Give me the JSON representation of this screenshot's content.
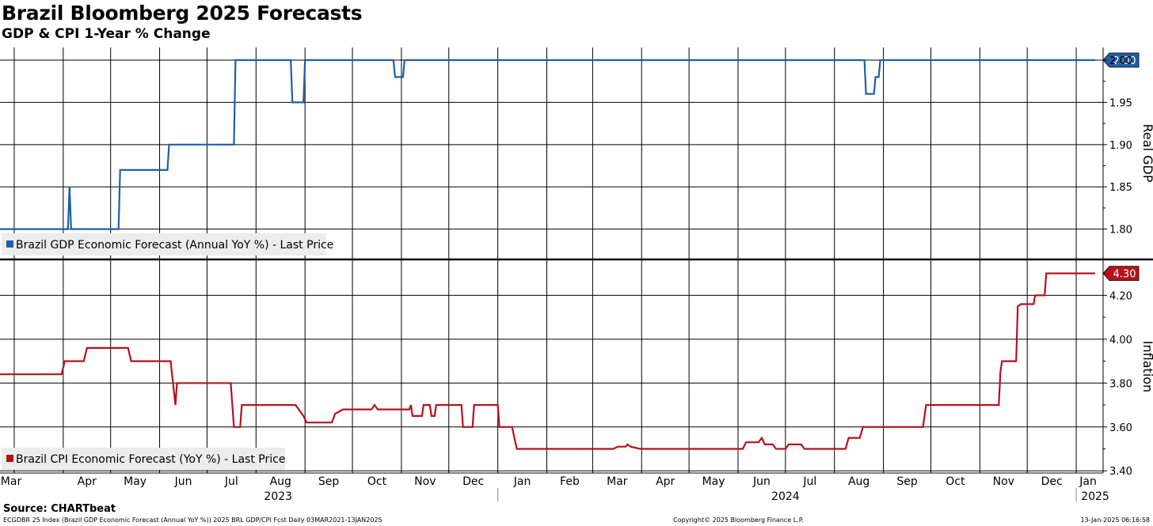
{
  "header": {
    "title": "Brazil Bloomberg 2025 Forecasts",
    "subtitle": "GDP & CPI 1-Year % Change"
  },
  "footer": {
    "source": "Source: CHARTbeat",
    "description": "ECGDBR 25 Index (Brazil GDP Economic Forecast (Annual YoY %)) 2025 BRL GDP/CPI Fcst  Daily 03MAR2021-13JAN2025",
    "copyright": "Copyright© 2025 Bloomberg Finance L.P.",
    "timestamp": "13-Jan-2025 06:16:58"
  },
  "colors": {
    "gdp": "#1f5fa6",
    "cpi": "#b5121b",
    "grid": "#000000"
  },
  "x_axis": {
    "months": [
      {
        "label": "Mar",
        "date": "2023-03-01"
      },
      {
        "label": "Apr",
        "date": "2023-04-01"
      },
      {
        "label": "May",
        "date": "2023-05-01"
      },
      {
        "label": "Jun",
        "date": "2023-06-01"
      },
      {
        "label": "Jul",
        "date": "2023-07-01"
      },
      {
        "label": "Aug",
        "date": "2023-08-01"
      },
      {
        "label": "Sep",
        "date": "2023-09-01"
      },
      {
        "label": "Oct",
        "date": "2023-10-01"
      },
      {
        "label": "Nov",
        "date": "2023-11-01"
      },
      {
        "label": "Dec",
        "date": "2023-12-01"
      },
      {
        "label": "Jan",
        "date": "2024-01-01"
      },
      {
        "label": "Feb",
        "date": "2024-02-01"
      },
      {
        "label": "Mar",
        "date": "2024-03-01"
      },
      {
        "label": "Apr",
        "date": "2024-04-01"
      },
      {
        "label": "May",
        "date": "2024-05-01"
      },
      {
        "label": "Jun",
        "date": "2024-06-01"
      },
      {
        "label": "Jul",
        "date": "2024-07-01"
      },
      {
        "label": "Aug",
        "date": "2024-08-01"
      },
      {
        "label": "Sep",
        "date": "2024-09-01"
      },
      {
        "label": "Oct",
        "date": "2024-10-01"
      },
      {
        "label": "Nov",
        "date": "2024-11-01"
      },
      {
        "label": "Dec",
        "date": "2024-12-01"
      },
      {
        "label": "Jan",
        "date": "2025-01-01"
      }
    ],
    "years": [
      {
        "label": "2023",
        "date": "2023-08-15"
      },
      {
        "label": "2024",
        "date": "2024-07-01"
      },
      {
        "label": "2025",
        "date": "2025-01-13"
      }
    ],
    "year_dividers": [
      "2024-01-01",
      "2025-01-01"
    ],
    "range": [
      "2023-02-20",
      "2025-01-18"
    ]
  },
  "chart_data": [
    {
      "type": "line",
      "ylabel": "Real GDP",
      "ylim": [
        1.765,
        2.015
      ],
      "yticks": [
        1.8,
        1.85,
        1.9,
        1.95,
        2.0
      ],
      "ytick_labels": [
        "1.80",
        "1.85",
        "1.90",
        "1.95",
        "2.00"
      ],
      "last_value_label": "2.00",
      "grid": true,
      "legend": "bottom-left",
      "series": [
        {
          "name": "Brazil GDP Economic Forecast (Annual YoY %) - Last Price",
          "points": [
            [
              "2023-02-20",
              1.8
            ],
            [
              "2023-04-04",
              1.8
            ],
            [
              "2023-04-05",
              1.85
            ],
            [
              "2023-04-06",
              1.8
            ],
            [
              "2023-05-06",
              1.8
            ],
            [
              "2023-05-07",
              1.87
            ],
            [
              "2023-06-06",
              1.87
            ],
            [
              "2023-06-07",
              1.9
            ],
            [
              "2023-07-18",
              1.9
            ],
            [
              "2023-07-19",
              2.0
            ],
            [
              "2023-08-23",
              2.0
            ],
            [
              "2023-08-24",
              1.95
            ],
            [
              "2023-08-31",
              1.95
            ],
            [
              "2023-09-01",
              2.0
            ],
            [
              "2023-10-27",
              2.0
            ],
            [
              "2023-10-28",
              1.98
            ],
            [
              "2023-11-02",
              1.98
            ],
            [
              "2023-11-03",
              2.0
            ],
            [
              "2024-08-20",
              2.0
            ],
            [
              "2024-08-21",
              1.96
            ],
            [
              "2024-08-26",
              1.96
            ],
            [
              "2024-08-27",
              1.98
            ],
            [
              "2024-08-29",
              1.98
            ],
            [
              "2024-08-30",
              2.0
            ],
            [
              "2025-01-13",
              2.0
            ]
          ]
        }
      ]
    },
    {
      "type": "line",
      "ylabel": "Inflation",
      "ylim": [
        3.39,
        4.36
      ],
      "yticks": [
        3.4,
        3.6,
        3.8,
        4.0,
        4.2
      ],
      "ytick_labels": [
        "3.40",
        "3.60",
        "3.80",
        "4.00",
        "4.20"
      ],
      "last_value_label": "4.30",
      "grid": true,
      "legend": "bottom-left",
      "series": [
        {
          "name": "Brazil CPI Economic Forecast (YoY %) - Last Price",
          "points": [
            [
              "2023-02-20",
              3.84
            ],
            [
              "2023-03-31",
              3.84
            ],
            [
              "2023-04-02",
              3.9
            ],
            [
              "2023-04-14",
              3.9
            ],
            [
              "2023-04-16",
              3.96
            ],
            [
              "2023-05-12",
              3.96
            ],
            [
              "2023-05-14",
              3.9
            ],
            [
              "2023-06-08",
              3.9
            ],
            [
              "2023-06-11",
              3.7
            ],
            [
              "2023-06-12",
              3.8
            ],
            [
              "2023-07-16",
              3.8
            ],
            [
              "2023-07-18",
              3.6
            ],
            [
              "2023-07-22",
              3.6
            ],
            [
              "2023-07-23",
              3.7
            ],
            [
              "2023-08-26",
              3.7
            ],
            [
              "2023-08-31",
              3.65
            ],
            [
              "2023-09-02",
              3.62
            ],
            [
              "2023-09-18",
              3.62
            ],
            [
              "2023-09-20",
              3.66
            ],
            [
              "2023-09-25",
              3.68
            ],
            [
              "2023-10-13",
              3.68
            ],
            [
              "2023-10-15",
              3.7
            ],
            [
              "2023-10-17",
              3.68
            ],
            [
              "2023-11-06",
              3.68
            ],
            [
              "2023-11-07",
              3.7
            ],
            [
              "2023-11-08",
              3.65
            ],
            [
              "2023-11-14",
              3.65
            ],
            [
              "2023-11-15",
              3.7
            ],
            [
              "2023-11-19",
              3.7
            ],
            [
              "2023-11-20",
              3.65
            ],
            [
              "2023-11-22",
              3.65
            ],
            [
              "2023-11-23",
              3.7
            ],
            [
              "2023-12-09",
              3.7
            ],
            [
              "2023-12-10",
              3.6
            ],
            [
              "2023-12-16",
              3.6
            ],
            [
              "2023-12-17",
              3.7
            ],
            [
              "2024-01-01",
              3.7
            ],
            [
              "2024-01-02",
              3.6
            ],
            [
              "2024-01-10",
              3.6
            ],
            [
              "2024-01-13",
              3.5
            ],
            [
              "2024-03-14",
              3.5
            ],
            [
              "2024-03-17",
              3.51
            ],
            [
              "2024-03-22",
              3.51
            ],
            [
              "2024-03-23",
              3.52
            ],
            [
              "2024-03-25",
              3.51
            ],
            [
              "2024-03-31",
              3.5
            ],
            [
              "2024-06-04",
              3.5
            ],
            [
              "2024-06-06",
              3.53
            ],
            [
              "2024-06-14",
              3.53
            ],
            [
              "2024-06-16",
              3.55
            ],
            [
              "2024-06-18",
              3.52
            ],
            [
              "2024-06-23",
              3.52
            ],
            [
              "2024-06-25",
              3.5
            ],
            [
              "2024-07-01",
              3.5
            ],
            [
              "2024-07-03",
              3.52
            ],
            [
              "2024-07-11",
              3.52
            ],
            [
              "2024-07-13",
              3.5
            ],
            [
              "2024-08-08",
              3.5
            ],
            [
              "2024-08-10",
              3.55
            ],
            [
              "2024-08-17",
              3.55
            ],
            [
              "2024-08-19",
              3.6
            ],
            [
              "2024-09-26",
              3.6
            ],
            [
              "2024-09-28",
              3.7
            ],
            [
              "2024-11-13",
              3.7
            ],
            [
              "2024-11-14",
              3.85
            ],
            [
              "2024-11-15",
              3.9
            ],
            [
              "2024-11-24",
              3.9
            ],
            [
              "2024-11-25",
              4.15
            ],
            [
              "2024-11-27",
              4.16
            ],
            [
              "2024-12-05",
              4.16
            ],
            [
              "2024-12-06",
              4.2
            ],
            [
              "2024-12-12",
              4.2
            ],
            [
              "2024-12-13",
              4.3
            ],
            [
              "2025-01-13",
              4.3
            ]
          ]
        }
      ]
    }
  ]
}
